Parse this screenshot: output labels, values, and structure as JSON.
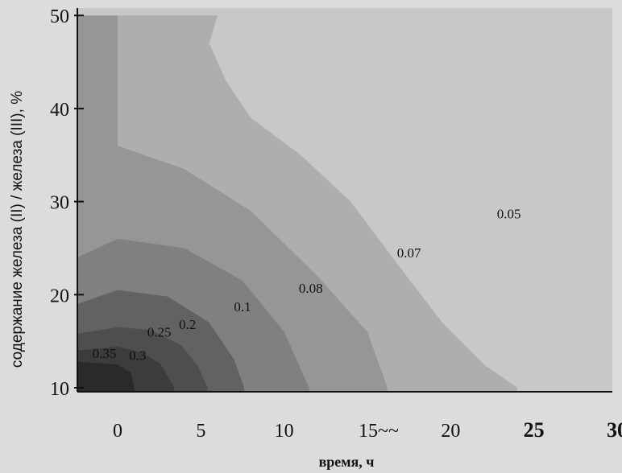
{
  "chart_data": {
    "type": "contour",
    "title": "",
    "xlabel": "время, ч",
    "ylabel": "содержание железа (II) / железа (III), %",
    "xlim": [
      0,
      30
    ],
    "ylim": [
      10,
      50
    ],
    "x_ticks": [
      {
        "value": 0,
        "label": "0"
      },
      {
        "value": 5,
        "label": "5"
      },
      {
        "value": 10,
        "label": "10"
      },
      {
        "value": 15,
        "label": "15~~"
      },
      {
        "value": 20,
        "label": "20"
      },
      {
        "value": 25,
        "label": "25"
      },
      {
        "value": 30,
        "label": "30"
      }
    ],
    "y_ticks": [
      {
        "value": 10,
        "label": "10"
      },
      {
        "value": 20,
        "label": "20"
      },
      {
        "value": 30,
        "label": "30"
      },
      {
        "value": 40,
        "label": "40"
      },
      {
        "value": 50,
        "label": "50"
      }
    ],
    "levels": [
      {
        "value": "0.35",
        "label": "0.35",
        "color": "#2a2a2a",
        "label_at": [
          -0.8,
          13.2
        ],
        "boundary": [
          [
            -3,
            12.8
          ],
          [
            0,
            12.5
          ],
          [
            0.8,
            11.6
          ],
          [
            1.0,
            10
          ]
        ]
      },
      {
        "value": "0.3",
        "label": "0.3",
        "color": "#3c3c3c",
        "label_at": [
          1.2,
          13.0
        ],
        "boundary": [
          [
            -3,
            14.0
          ],
          [
            0,
            14.4
          ],
          [
            1.5,
            13.8
          ],
          [
            2.6,
            12.5
          ],
          [
            3.4,
            10
          ]
        ]
      },
      {
        "value": "0.25",
        "label": "0.25",
        "color": "#4e4e4e",
        "label_at": [
          2.5,
          15.5
        ],
        "boundary": [
          [
            -3,
            15.8
          ],
          [
            0,
            16.5
          ],
          [
            2.0,
            16.2
          ],
          [
            3.8,
            14.6
          ],
          [
            4.8,
            12.4
          ],
          [
            5.4,
            10
          ]
        ]
      },
      {
        "value": "0.2",
        "label": "0.2",
        "color": "#626262",
        "label_at": [
          4.2,
          16.3
        ],
        "boundary": [
          [
            -3,
            19.0
          ],
          [
            0,
            20.5
          ],
          [
            3.0,
            19.8
          ],
          [
            5.5,
            17.0
          ],
          [
            7.0,
            13.0
          ],
          [
            7.6,
            10
          ]
        ]
      },
      {
        "value": "0.1",
        "label": "0.1",
        "color": "#808080",
        "label_at": [
          7.5,
          18.2
        ],
        "boundary": [
          [
            -3,
            24.0
          ],
          [
            0,
            26.0
          ],
          [
            4.0,
            25.0
          ],
          [
            7.5,
            21.5
          ],
          [
            10.0,
            16.0
          ],
          [
            11.5,
            10
          ]
        ]
      },
      {
        "value": "0.08",
        "label": "0.08",
        "color": "#969696",
        "label_at": [
          11.6,
          20.2
        ],
        "boundary": [
          [
            -3,
            50
          ],
          [
            0,
            50
          ],
          [
            0,
            36.0
          ],
          [
            4.0,
            33.5
          ],
          [
            8.0,
            29.0
          ],
          [
            12.0,
            22.0
          ],
          [
            15.0,
            16.0
          ],
          [
            16.2,
            10
          ]
        ]
      },
      {
        "value": "0.07",
        "label": "0.07",
        "color": "#aeaeae",
        "label_at": [
          17.5,
          24.0
        ],
        "boundary": [
          [
            6.0,
            50
          ],
          [
            5.5,
            47.0
          ],
          [
            6.5,
            43.0
          ],
          [
            8.0,
            39.0
          ],
          [
            11.0,
            35.0
          ],
          [
            14.0,
            30.0
          ],
          [
            16.5,
            24.0
          ],
          [
            19.5,
            17.0
          ],
          [
            22.0,
            12.5
          ],
          [
            24.0,
            10
          ]
        ]
      },
      {
        "value": "0.05",
        "label": "0.05",
        "color": "#c8c8c8",
        "label_at": [
          23.5,
          28.2
        ],
        "boundary": []
      }
    ]
  }
}
